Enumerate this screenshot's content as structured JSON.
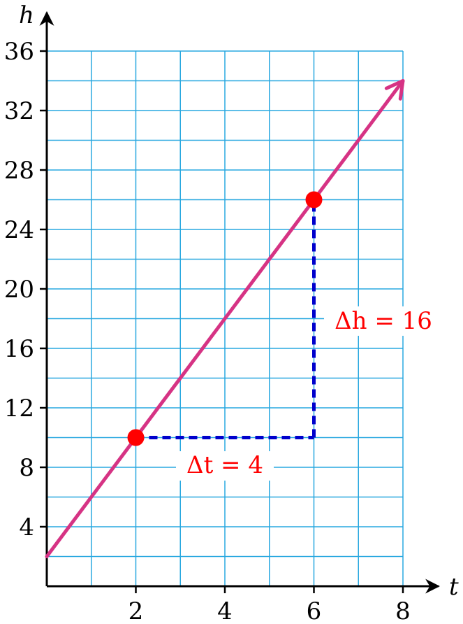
{
  "chart_data": {
    "type": "line",
    "xlabel": "t",
    "ylabel": "h",
    "xlim": [
      0,
      8
    ],
    "ylim": [
      0,
      36
    ],
    "x_ticks": [
      2,
      4,
      6,
      8
    ],
    "y_ticks": [
      4,
      8,
      12,
      16,
      20,
      24,
      28,
      32,
      36
    ],
    "x_minor_step": 1,
    "y_minor_step": 2,
    "grid": true,
    "line": {
      "x": [
        0,
        8
      ],
      "y": [
        2,
        34
      ],
      "arrow_end": true
    },
    "points": [
      {
        "x": 2,
        "y": 10
      },
      {
        "x": 6,
        "y": 26
      }
    ],
    "annotations": {
      "delta_t": "Δt = 4",
      "delta_h": "Δh = 16"
    },
    "colors": {
      "grid": "#29a8e0",
      "line": "#d63384",
      "points": "#ff0000",
      "dashed": "#0000cc",
      "annotation_text": "#ff0000"
    }
  }
}
